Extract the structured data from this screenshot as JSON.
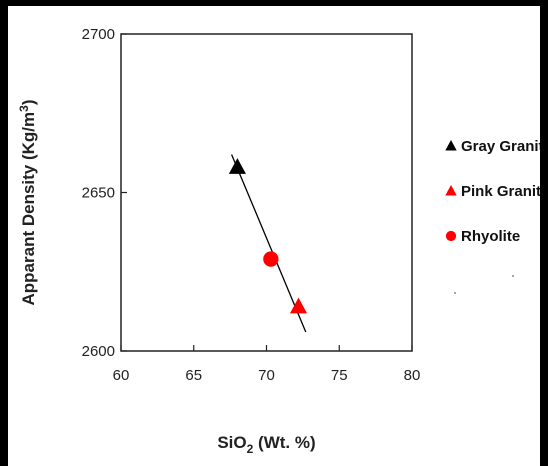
{
  "chart_data": {
    "type": "scatter",
    "title": "",
    "xlabel": {
      "main": "SiO",
      "sub": "2",
      "rest": " (Wt. %)"
    },
    "ylabel": "Apparant Density (Kg/m",
    "ylabel_sup": "3",
    "ylabel_end": ")",
    "xlim": [
      60,
      80
    ],
    "ylim": [
      2600,
      2700
    ],
    "xticks": [
      "60",
      "65",
      "70",
      "75",
      "80"
    ],
    "yticks": [
      "2600",
      "2650",
      "2700"
    ],
    "grid": false,
    "legend_position": "right",
    "series": [
      {
        "name": "Gray Granite",
        "marker": "triangle",
        "color": "#000000",
        "points": [
          [
            68.0,
            2658
          ]
        ]
      },
      {
        "name": "Pink Granite",
        "marker": "triangle",
        "color": "#ff0000",
        "points": [
          [
            72.2,
            2614
          ]
        ]
      },
      {
        "name": "Rhyolite",
        "marker": "circle",
        "color": "#ff0000",
        "points": [
          [
            70.3,
            2629
          ]
        ]
      }
    ],
    "trendline": {
      "color": "#000000",
      "points": [
        [
          67.6,
          2662
        ],
        [
          72.7,
          2606
        ]
      ]
    }
  }
}
